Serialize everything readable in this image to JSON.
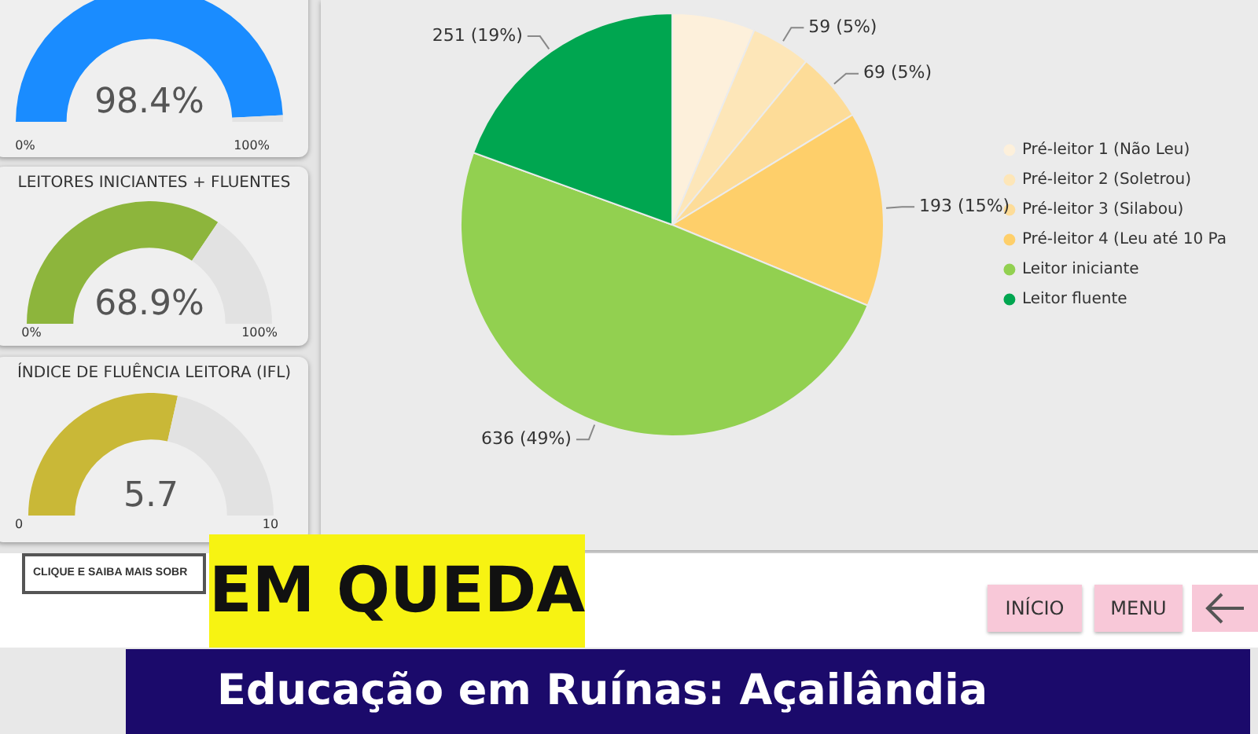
{
  "chart_data": [
    {
      "type": "donut",
      "categories": [
        null,
        null
      ],
      "values": [
        98.4,
        1.6
      ],
      "colors": [
        "#1a8cff",
        "#e2e2e2"
      ],
      "value_labels": [
        "98.4%",
        null
      ],
      "annotations": [
        "0%",
        "100%"
      ]
    },
    {
      "type": "donut",
      "title": "LEITORES INICIANTES + FLUENTES",
      "categories": [
        null,
        null
      ],
      "values": [
        68.9,
        31.1
      ],
      "colors": [
        "#8db53c",
        "#e2e2e2"
      ],
      "value_labels": [
        "68.9%",
        null
      ],
      "annotations": [
        "0%",
        "100%"
      ]
    },
    {
      "type": "donut",
      "title": "ÍNDICE DE FLUÊNCIA LEITORA (IFL)",
      "categories": [
        null,
        null
      ],
      "values": [
        5.7,
        4.3
      ],
      "colors": [
        "#c9b837",
        "#e2e2e2"
      ],
      "value_labels": [
        "5.7",
        null
      ],
      "annotations": [
        "0",
        "10"
      ]
    },
    {
      "type": "pie",
      "categories": [
        "Pré-leitor 1 (Não Leu)",
        "Pré-leitor 2 (Soletrou)",
        "Pré-leitor 3 (Silabou)",
        "Pré-leitor 4 (Leu até 10 Pa",
        "Leitor iniciante",
        "Leitor fluente"
      ],
      "values": [
        82,
        59,
        69,
        193,
        636,
        251
      ],
      "colors": [
        "#fdf0db",
        "#fde6b8",
        "#fddc98",
        "#fecf6a",
        "#92d050",
        "#00a650"
      ],
      "value_labels": [
        null,
        "59 (5%)",
        "69 (5%)",
        "193 (15%)",
        "636 (49%)",
        "251 (19%)"
      ],
      "legend": "right",
      "annotations": [
        "EM QUEDA",
        "Educação em Ruínas: Açailândia",
        "CLIQUE E SAIBA MAIS SOBR",
        "INÍCIO",
        "MENU"
      ]
    }
  ]
}
